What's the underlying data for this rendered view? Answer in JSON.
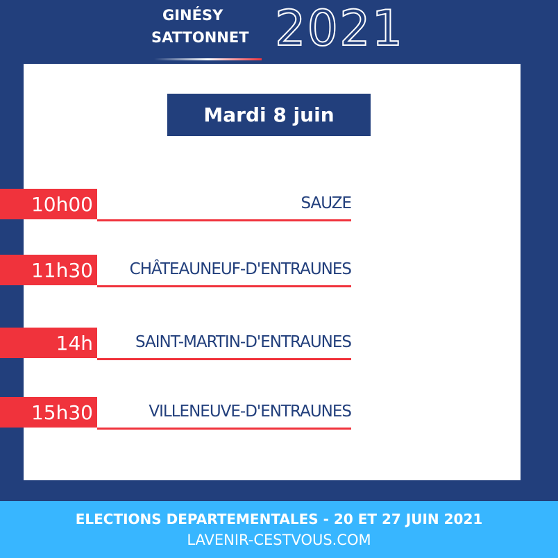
{
  "header": {
    "name_line1": "GINÉSY",
    "name_line2": "SATTONNET",
    "year": "2021"
  },
  "day": "Mardi 8 juin",
  "events": [
    {
      "time": "10h00",
      "place": "SAUZE"
    },
    {
      "time": "11h30",
      "place": "CHÂTEAUNEUF-D'ENTRAUNES"
    },
    {
      "time": "14h",
      "place": "SAINT-MARTIN-D'ENTRAUNES"
    },
    {
      "time": "15h30",
      "place": "VILLENEUVE-D'ENTRAUNES"
    }
  ],
  "footer": {
    "line1": "ELECTIONS DEPARTEMENTALES - 20 ET 27 JUIN 2021",
    "line2": "LAVENIR-CESTVOUS.COM"
  }
}
